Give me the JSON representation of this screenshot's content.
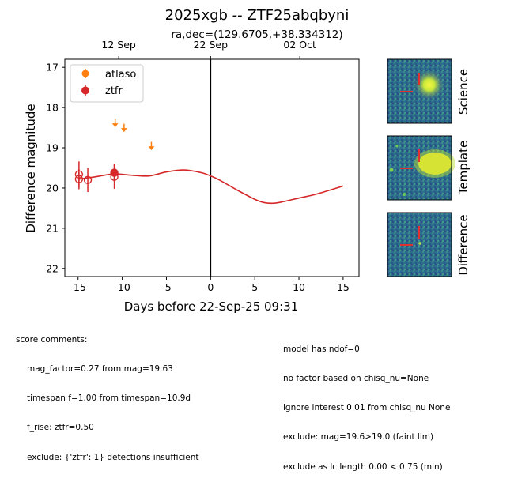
{
  "chart_data": {
    "type": "scatter",
    "title": "2025xgb -- ZTF25abqbyni",
    "subtitle": "ra,dec=(129.6705,+38.334312)",
    "xlabel": "Days before 22-Sep-25 09:31",
    "ylabel": "Difference magnitude",
    "xlim": [
      -16.5,
      16.8
    ],
    "ylim": [
      22.2,
      16.8
    ],
    "y_inverted": true,
    "xticks": [
      -15,
      -10,
      -5,
      0,
      5,
      10,
      15
    ],
    "yticks": [
      17,
      18,
      19,
      20,
      21,
      22
    ],
    "top_axis": {
      "ticks": [
        {
          "x": -10.4,
          "label": "12 Sep"
        },
        {
          "x": 0,
          "label": "22 Sep"
        },
        {
          "x": 10.1,
          "label": "02 Oct"
        }
      ]
    },
    "vline_x": 0,
    "legend": {
      "placement": "top-left",
      "entries": [
        "atlaso",
        "ztfr"
      ]
    },
    "series": [
      {
        "name": "atlaso",
        "color": "#ff7f0e",
        "marker": "upper-limit-arrow",
        "points": [
          {
            "x": -10.8,
            "y": 18.38
          },
          {
            "x": -9.8,
            "y": 18.5
          },
          {
            "x": -6.7,
            "y": 18.95
          }
        ]
      },
      {
        "name": "ztfr",
        "color": "#d62728",
        "marker": "filled-circle",
        "points": [
          {
            "x": -10.9,
            "y": 19.62,
            "yerr": 0.22
          }
        ]
      },
      {
        "name": "ztfr",
        "color": "#d62728",
        "marker": "open-circle",
        "points": [
          {
            "x": -14.9,
            "y": 19.66,
            "yerr": 0.32
          },
          {
            "x": -14.9,
            "y": 19.78,
            "yerr": 0.25
          },
          {
            "x": -13.9,
            "y": 19.8,
            "yerr": 0.3
          },
          {
            "x": -10.9,
            "y": 19.72,
            "yerr": 0.3
          }
        ]
      }
    ],
    "model_curve": {
      "color": "#d62728",
      "x": [
        -15,
        -13,
        -11,
        -9,
        -7,
        -5,
        -3,
        -1,
        0,
        1,
        3,
        5,
        6,
        7,
        8,
        10,
        12,
        15
      ],
      "y": [
        19.78,
        19.72,
        19.65,
        19.68,
        19.7,
        19.6,
        19.55,
        19.62,
        19.7,
        19.8,
        20.05,
        20.28,
        20.36,
        20.38,
        20.35,
        20.25,
        20.15,
        19.95
      ]
    }
  },
  "stamps": [
    {
      "label": "Science",
      "bg": "#2a5e8c"
    },
    {
      "label": "Template",
      "bg": "#1f6b8e"
    },
    {
      "label": "Difference",
      "bg": "#2b7a8f"
    }
  ],
  "comments_left": {
    "header": "score comments:",
    "lines": [
      "mag_factor=0.27 from mag=19.63",
      "timespan f=1.00 from timespan=10.9d",
      "f_rise: ztfr=0.50",
      "exclude: {'ztfr': 1} detections insufficient"
    ]
  },
  "comments_right": {
    "lines": [
      "model has ndof=0",
      "no factor based on chisq_nu=None",
      "ignore interest 0.01 from chisq_nu None",
      "exclude: mag=19.6>19.0 (faint lim)",
      "exclude as lc length 0.00 < 0.75 (min)"
    ]
  }
}
